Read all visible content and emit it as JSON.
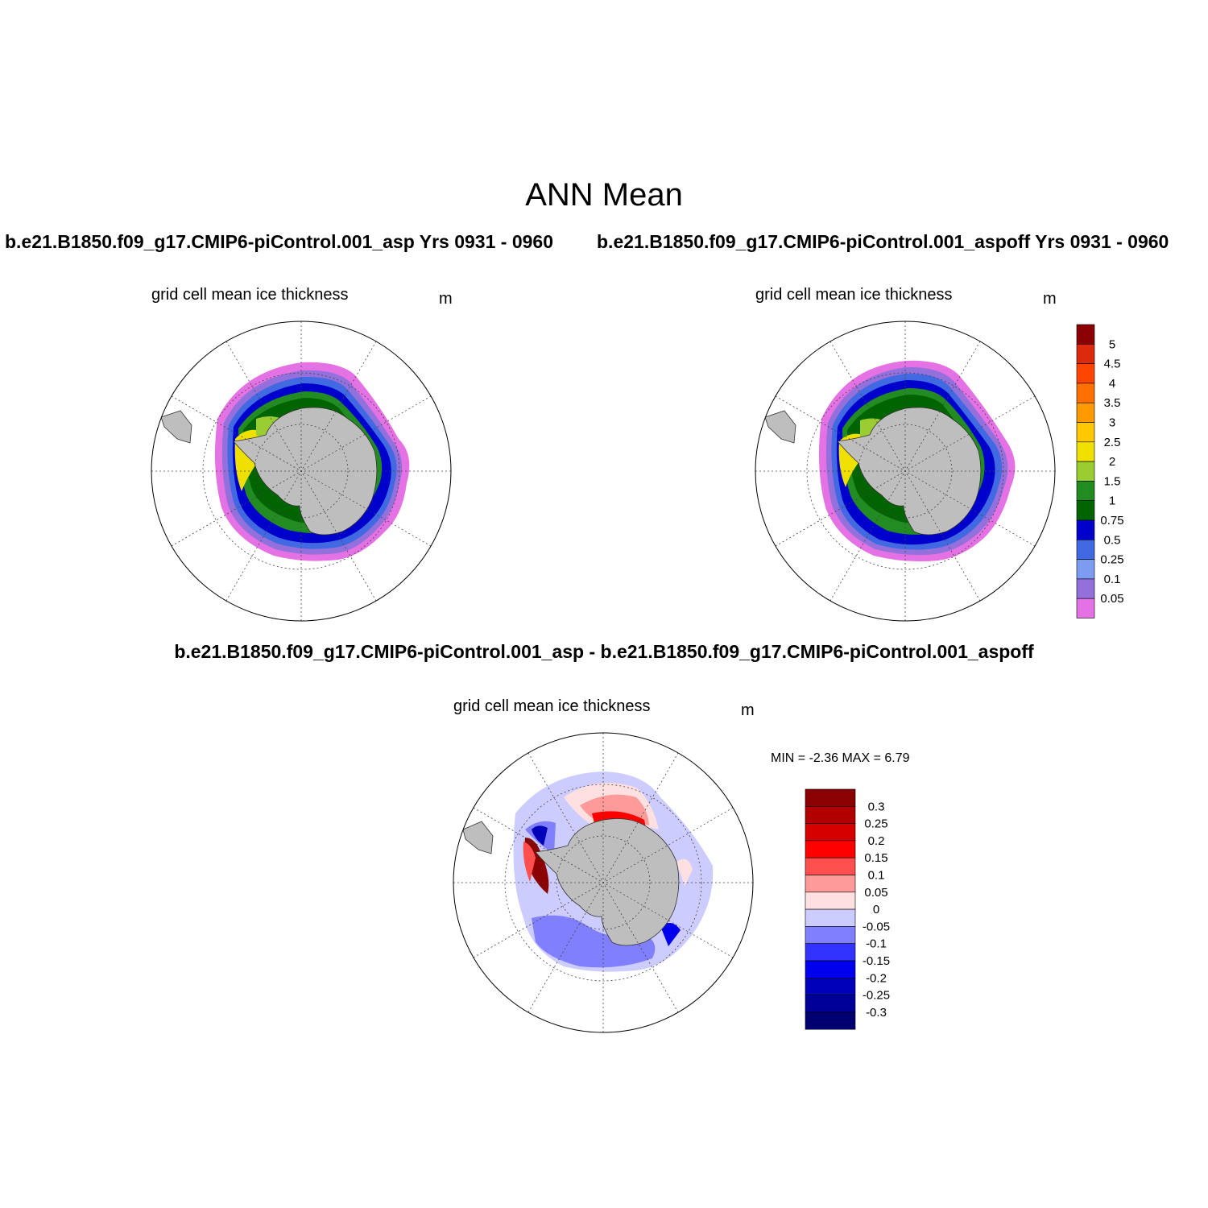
{
  "figure": {
    "title": "ANN Mean",
    "case1_title": "b.e21.B1850.f09_g17.CMIP6-piControl.001_asp  Yrs 0931 - 0960",
    "case2_title": "b.e21.B1850.f09_g17.CMIP6-piControl.001_aspoff  Yrs 0931 - 0960",
    "diff_title": "b.e21.B1850.f09_g17.CMIP6-piControl.001_asp - b.e21.B1850.f09_g17.CMIP6-piControl.001_aspoff"
  },
  "panels": [
    {
      "variable": "grid cell mean ice thickness",
      "units": "m"
    },
    {
      "variable": "grid cell mean ice thickness",
      "units": "m"
    },
    {
      "variable": "grid cell mean ice thickness",
      "units": "m",
      "stats": "MIN =  -2.36 MAX =   6.79"
    }
  ],
  "colorbar_thickness": {
    "labels": [
      "5",
      "4.5",
      "4",
      "3.5",
      "3",
      "2.5",
      "2",
      "1.5",
      "1",
      "0.75",
      "0.5",
      "0.25",
      "0.1",
      "0.05"
    ],
    "colors_top_to_bottom": [
      "#8b0000",
      "#dc2a0f",
      "#ff4500",
      "#ff7000",
      "#ff9a00",
      "#ffc800",
      "#f0e000",
      "#9acd32",
      "#228b22",
      "#006400",
      "#0000cd",
      "#4169e1",
      "#7b9cf0",
      "#9370db",
      "#e472e4"
    ]
  },
  "colorbar_diff": {
    "labels": [
      "0.3",
      "0.25",
      "0.2",
      "0.15",
      "0.1",
      "0.05",
      "0",
      "-0.05",
      "-0.1",
      "-0.15",
      "-0.2",
      "-0.25",
      "-0.3"
    ],
    "colors_top_to_bottom": [
      "#8b0000",
      "#b20000",
      "#d60000",
      "#ff0000",
      "#ff4f4f",
      "#ff9a9a",
      "#ffe0e0",
      "#ccccff",
      "#8080ff",
      "#3333ff",
      "#0000ee",
      "#0000bb",
      "#000099",
      "#000070"
    ]
  }
}
